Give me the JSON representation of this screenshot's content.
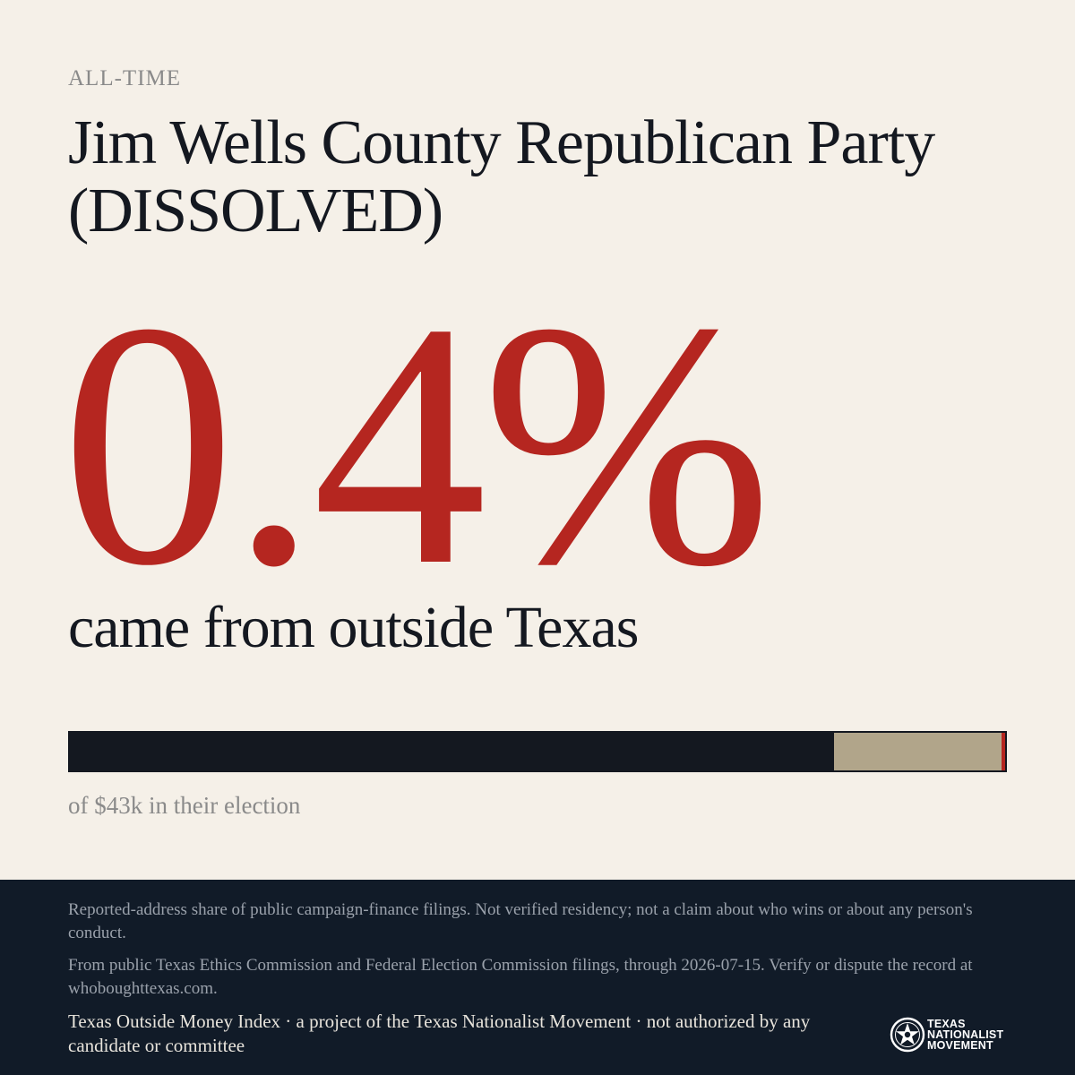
{
  "header": {
    "period": "ALL-TIME",
    "title": "Jim Wells County Republican Party (DISSOLVED)"
  },
  "headline": {
    "percent": "0.4%",
    "subtitle": "came from outside Texas"
  },
  "breakdown_bar": {
    "segments": [
      {
        "name": "texas",
        "share": 0.817,
        "color": "#141820"
      },
      {
        "name": "unknown",
        "share": 0.179,
        "color": "#b1a58a"
      },
      {
        "name": "outside",
        "share": 0.004,
        "color": "#b52620"
      }
    ],
    "caption": "of $43k in their election"
  },
  "footer": {
    "disclaimer": "Reported-address share of public campaign-finance filings. Not verified residency; not a claim about who wins or about any person's conduct.",
    "source": "From public Texas Ethics Commission and Federal Election Commission filings, through 2026-07-15. Verify or dispute the record at whoboughttexas.com.",
    "credit": "Texas Outside Money Index · a project of the Texas Nationalist Movement · not authorized by any candidate or committee",
    "logo": {
      "icon": "texas-star-seal-icon",
      "line1": "TEXAS",
      "line2": "NATIONALIST",
      "line3": "MOVEMENT"
    }
  }
}
